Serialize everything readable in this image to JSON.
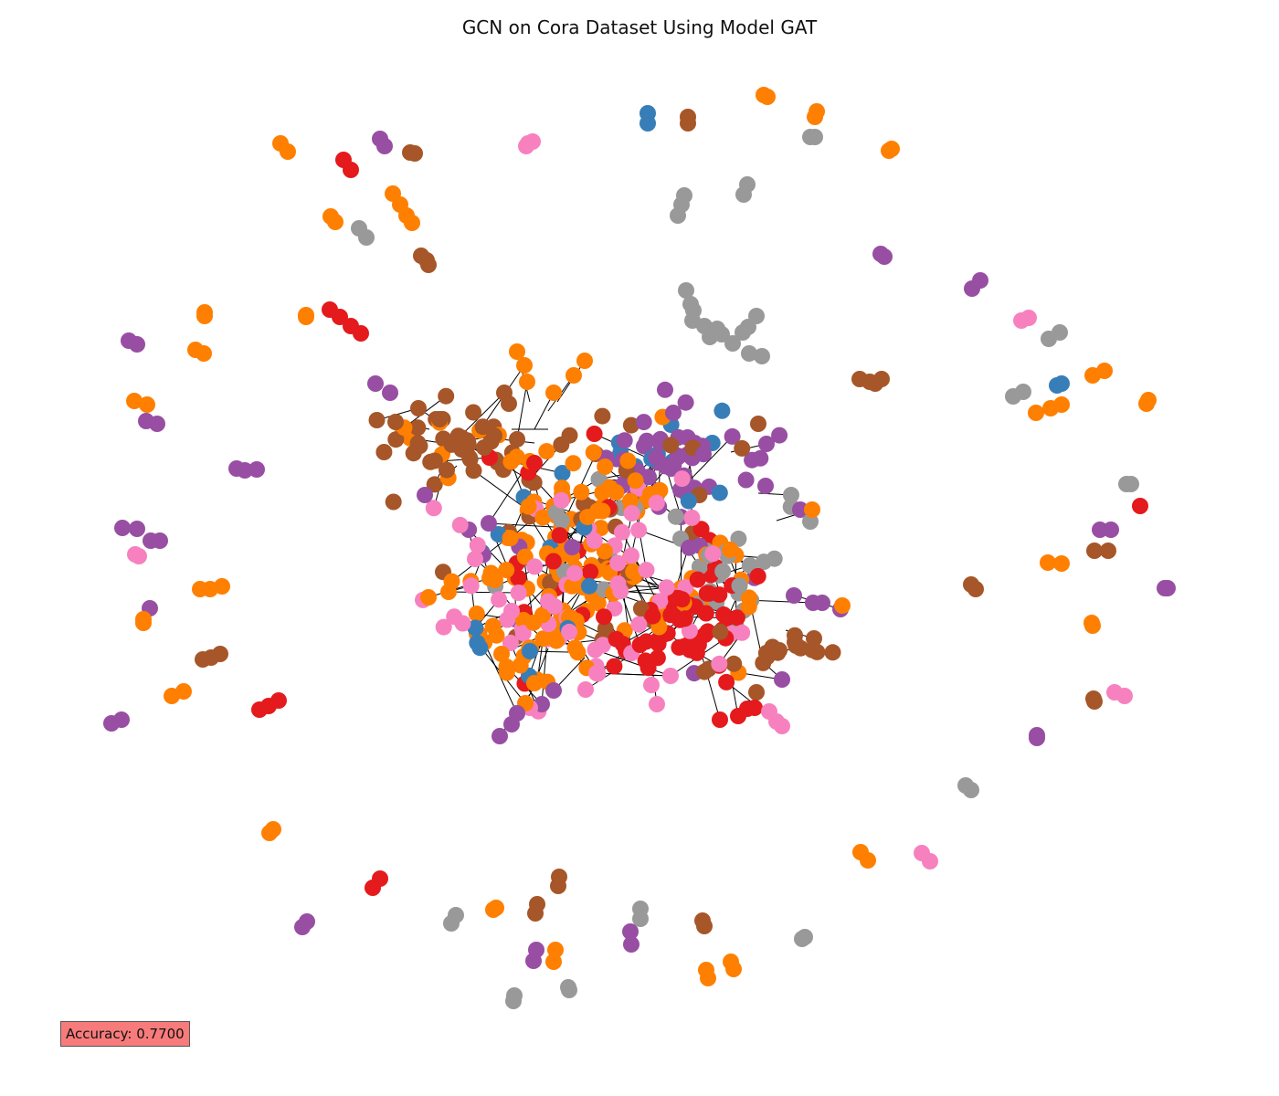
{
  "title": "GCN on Cora Dataset Using Model GAT",
  "accuracy_text": "Accuracy: 0.7700",
  "accuracy_value": 0.77,
  "colors": {
    "node_classes": [
      "#377eb8",
      "#ff7f00",
      "#4daf4a",
      "#f781bf",
      "#a65628",
      "#984ea3",
      "#999999",
      "#e41a1c"
    ],
    "edge": "#000000",
    "accuracy_box": "#f87b7b"
  },
  "chart_data": {
    "type": "network-graph",
    "title": "GCN on Cora Dataset Using Model GAT",
    "axes": "hidden",
    "grid": false,
    "legend": "none",
    "class_count": 7,
    "annotation": "Accuracy: 0.7700",
    "annotation_placement": "bottom-left"
  }
}
